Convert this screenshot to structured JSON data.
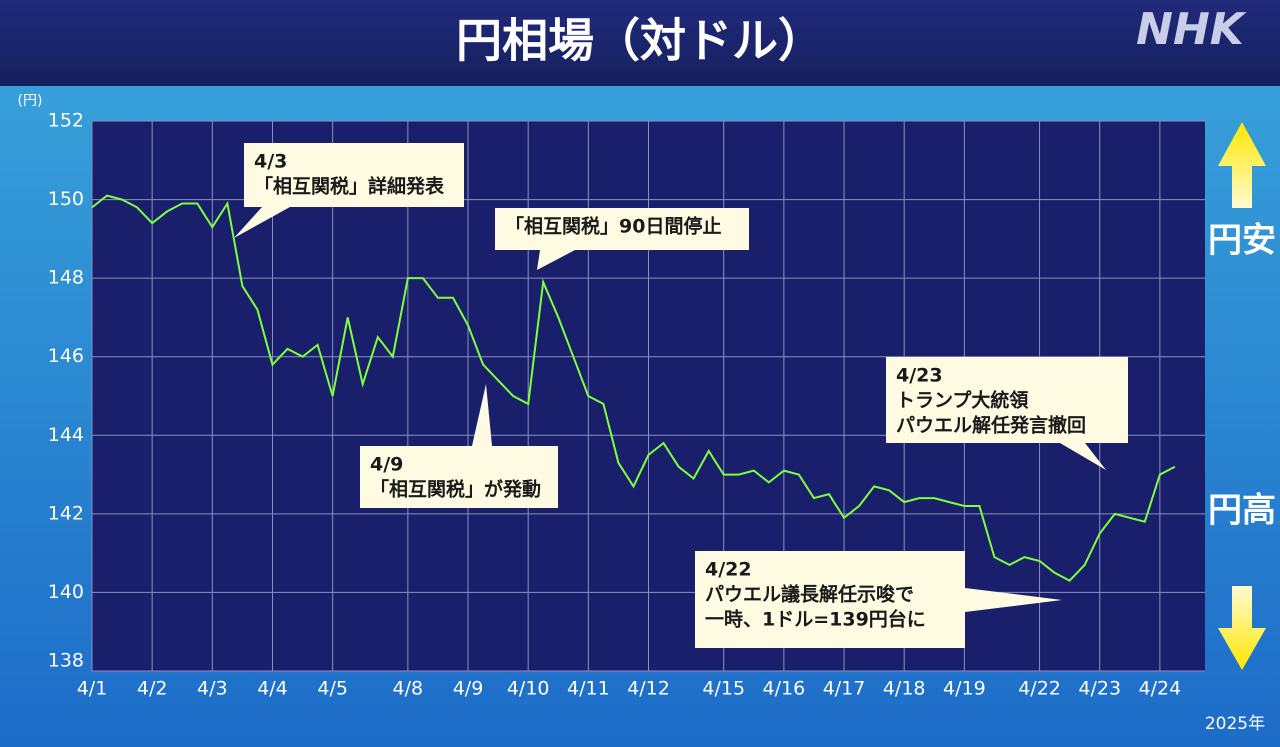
{
  "chart_data": {
    "type": "line",
    "title": "円相場（対ドル）",
    "logo": "NHK",
    "y_unit": "(円)",
    "year": "2025年",
    "side_labels": {
      "top": "円安",
      "bottom": "円高"
    },
    "categories": [
      "4/1",
      null,
      null,
      null,
      "4/2",
      null,
      null,
      null,
      "4/3",
      null,
      null,
      null,
      "4/4",
      null,
      null,
      null,
      "4/5",
      null,
      null,
      null,
      null,
      "4/8",
      null,
      null,
      null,
      "4/9",
      null,
      null,
      null,
      "4/10",
      null,
      null,
      null,
      "4/11",
      null,
      null,
      null,
      "4/12",
      null,
      null,
      null,
      null,
      "4/15",
      null,
      null,
      null,
      "4/16",
      null,
      null,
      null,
      "4/17",
      null,
      null,
      null,
      "4/18",
      null,
      null,
      null,
      "4/19",
      null,
      null,
      null,
      null,
      "4/22",
      null,
      null,
      null,
      "4/23",
      null,
      null,
      null,
      "4/24",
      null
    ],
    "series": [
      {
        "color": "#7dff3c",
        "values": [
          149.8,
          150.1,
          150.0,
          149.8,
          149.4,
          149.7,
          149.9,
          149.9,
          149.3,
          149.9,
          147.8,
          147.2,
          145.8,
          146.2,
          146.0,
          146.3,
          145.0,
          147.0,
          145.3,
          146.5,
          146.0,
          148.0,
          148.0,
          147.5,
          147.5,
          146.8,
          145.8,
          145.4,
          145.0,
          144.8,
          147.9,
          147.0,
          146.0,
          145.0,
          144.8,
          143.3,
          142.7,
          143.5,
          143.8,
          143.2,
          142.9,
          143.6,
          143.0,
          143.0,
          143.1,
          142.8,
          143.1,
          143.0,
          142.4,
          142.5,
          141.9,
          142.2,
          142.7,
          142.6,
          142.3,
          142.4,
          142.4,
          142.3,
          142.2,
          142.2,
          140.9,
          140.7,
          140.9,
          140.8,
          140.5,
          140.3,
          140.7,
          141.5,
          142.0,
          141.9,
          141.8,
          143.0,
          143.2
        ]
      }
    ],
    "ylim": [
      138,
      152
    ],
    "yticks": [
      138,
      140,
      142,
      144,
      146,
      148,
      150,
      152
    ],
    "grid": true,
    "annotations": [
      {
        "lines": [
          "4/3",
          "「相互関税」詳細発表"
        ]
      },
      {
        "lines": [
          "「相互関税」90日間停止"
        ]
      },
      {
        "lines": [
          "4/9",
          "「相互関税」が発動"
        ]
      },
      {
        "lines": [
          "4/23",
          "トランプ大統領",
          "パウエル解任発言撤回"
        ]
      },
      {
        "lines": [
          "4/22",
          "パウエル議長解任示唆で",
          "一時、1ドル=139円台に"
        ]
      }
    ]
  }
}
